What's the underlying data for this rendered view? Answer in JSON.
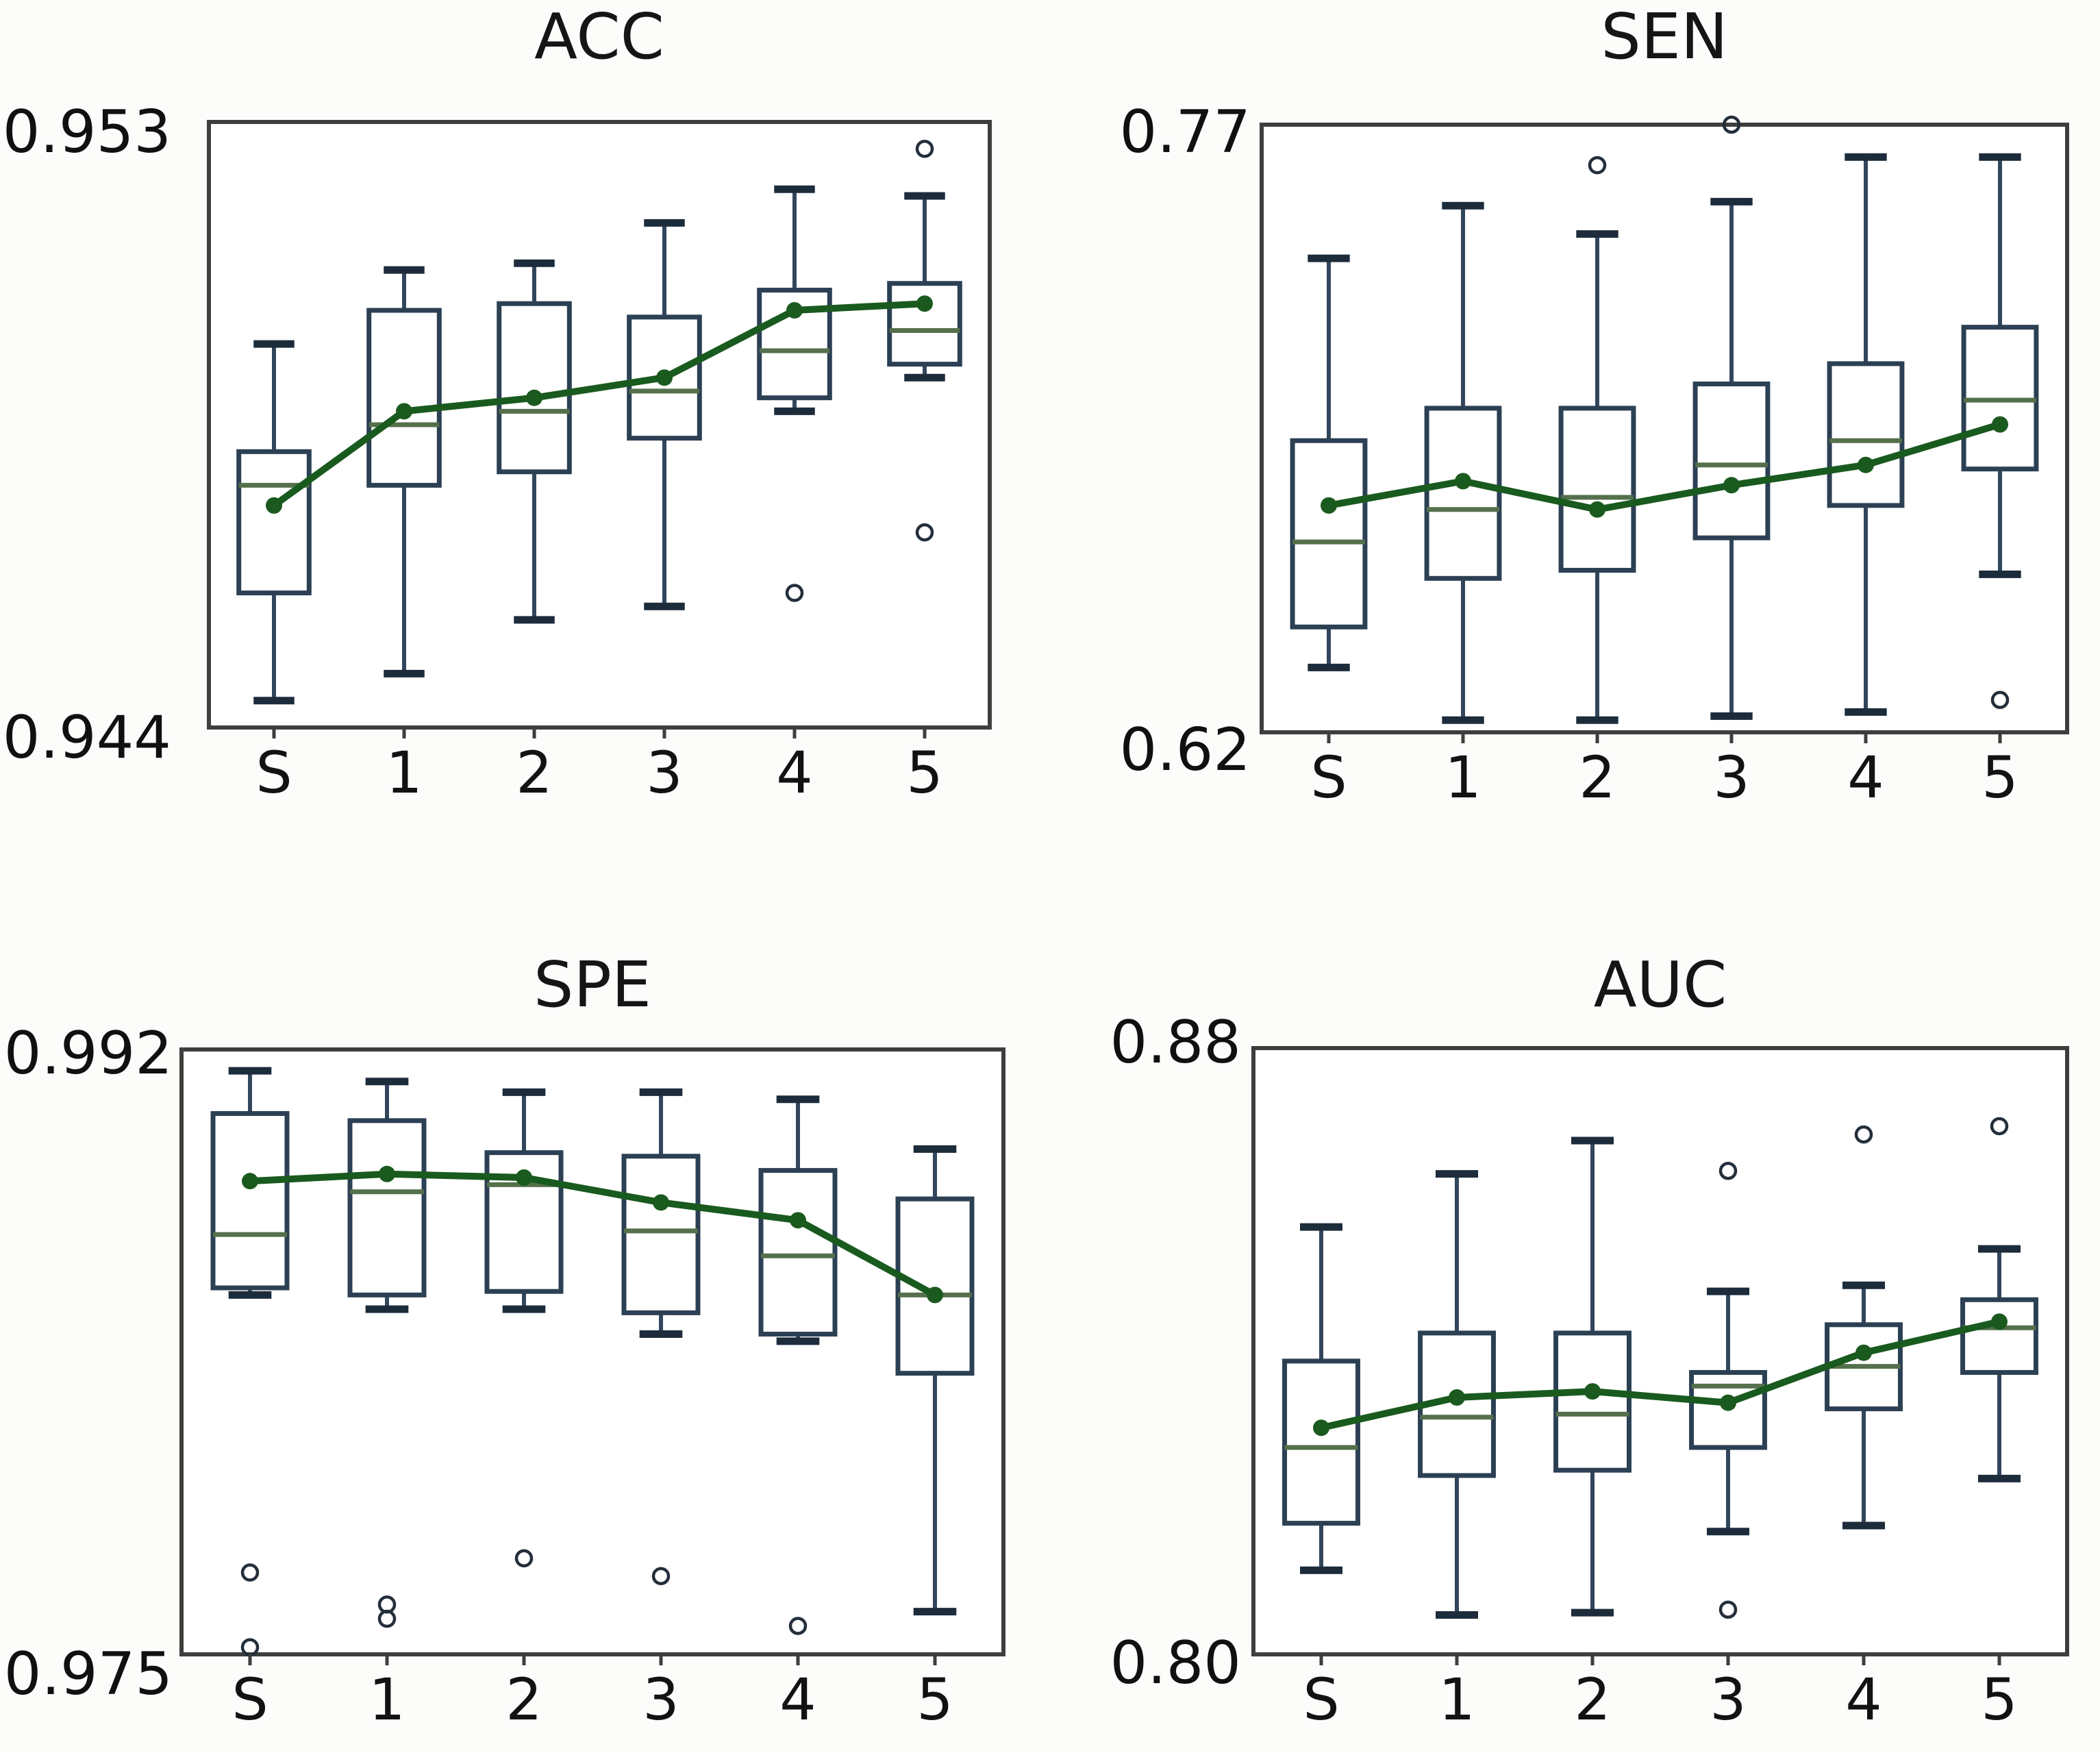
{
  "figure": {
    "background": "#fcfcfb",
    "text_color": "#121212"
  },
  "colors": {
    "box_edge": "#2c4054",
    "whisker": "#32465c",
    "whisker_cap": "#1d2c3b",
    "median": "#55704c",
    "mean_line": "#195a1e",
    "mean_marker": "#1b5a1f",
    "outlier_edge": "#232f3b",
    "frame": "#3e3e3c",
    "tick": "#3e3e3c"
  },
  "chart_data": [
    {
      "id": "acc",
      "type": "boxplot",
      "title": "ACC",
      "ymax_label": "0.953",
      "ymin_label": "0.944",
      "ylim": [
        0.944,
        0.953
      ],
      "grid": false,
      "categories": [
        "S",
        "1",
        "2",
        "3",
        "4",
        "5"
      ],
      "boxes": [
        {
          "whislo": 0.9444,
          "q1": 0.946,
          "med": 0.9476,
          "q3": 0.9481,
          "whishi": 0.9497,
          "mean": 0.9473,
          "fliers": []
        },
        {
          "whislo": 0.9448,
          "q1": 0.9476,
          "med": 0.9485,
          "q3": 0.9502,
          "whishi": 0.9508,
          "mean": 0.9487,
          "fliers": []
        },
        {
          "whislo": 0.9456,
          "q1": 0.9478,
          "med": 0.9487,
          "q3": 0.9503,
          "whishi": 0.9509,
          "mean": 0.9489,
          "fliers": []
        },
        {
          "whislo": 0.9458,
          "q1": 0.9483,
          "med": 0.949,
          "q3": 0.9501,
          "whishi": 0.9515,
          "mean": 0.9492,
          "fliers": []
        },
        {
          "whislo": 0.9487,
          "q1": 0.9489,
          "med": 0.9496,
          "q3": 0.9505,
          "whishi": 0.952,
          "mean": 0.9502,
          "fliers": [
            0.946
          ]
        },
        {
          "whislo": 0.9492,
          "q1": 0.9494,
          "med": 0.9499,
          "q3": 0.9506,
          "whishi": 0.9519,
          "mean": 0.9503,
          "fliers": [
            0.9526,
            0.9469
          ]
        }
      ]
    },
    {
      "id": "sen",
      "type": "boxplot",
      "title": "SEN",
      "ymax_label": "0.77",
      "ymin_label": "0.62",
      "ylim": [
        0.62,
        0.77
      ],
      "grid": false,
      "categories": [
        "S",
        "1",
        "2",
        "3",
        "4",
        "5"
      ],
      "boxes": [
        {
          "whislo": 0.636,
          "q1": 0.646,
          "med": 0.667,
          "q3": 0.692,
          "whishi": 0.737,
          "mean": 0.676,
          "fliers": []
        },
        {
          "whislo": 0.623,
          "q1": 0.658,
          "med": 0.675,
          "q3": 0.7,
          "whishi": 0.75,
          "mean": 0.682,
          "fliers": []
        },
        {
          "whislo": 0.623,
          "q1": 0.66,
          "med": 0.678,
          "q3": 0.7,
          "whishi": 0.743,
          "mean": 0.675,
          "fliers": [
            0.76
          ]
        },
        {
          "whislo": 0.624,
          "q1": 0.668,
          "med": 0.686,
          "q3": 0.706,
          "whishi": 0.751,
          "mean": 0.681,
          "fliers": [
            0.77
          ]
        },
        {
          "whislo": 0.625,
          "q1": 0.676,
          "med": 0.692,
          "q3": 0.711,
          "whishi": 0.762,
          "mean": 0.686,
          "fliers": []
        },
        {
          "whislo": 0.659,
          "q1": 0.685,
          "med": 0.702,
          "q3": 0.72,
          "whishi": 0.762,
          "mean": 0.696,
          "fliers": [
            0.628
          ]
        }
      ]
    },
    {
      "id": "spe",
      "type": "boxplot",
      "title": "SPE",
      "ymax_label": "0.992",
      "ymin_label": "0.975",
      "ylim": [
        0.975,
        0.992
      ],
      "grid": false,
      "categories": [
        "S",
        "1",
        "2",
        "3",
        "4",
        "5"
      ],
      "boxes": [
        {
          "whislo": 0.9851,
          "q1": 0.9853,
          "med": 0.9868,
          "q3": 0.9902,
          "whishi": 0.9914,
          "mean": 0.9883,
          "fliers": [
            0.9773,
            0.9752
          ]
        },
        {
          "whislo": 0.9847,
          "q1": 0.9851,
          "med": 0.988,
          "q3": 0.99,
          "whishi": 0.9911,
          "mean": 0.9885,
          "fliers": [
            0.9764,
            0.976
          ]
        },
        {
          "whislo": 0.9847,
          "q1": 0.9852,
          "med": 0.9882,
          "q3": 0.9891,
          "whishi": 0.9908,
          "mean": 0.9884,
          "fliers": [
            0.9777
          ]
        },
        {
          "whislo": 0.984,
          "q1": 0.9846,
          "med": 0.9869,
          "q3": 0.989,
          "whishi": 0.9908,
          "mean": 0.9877,
          "fliers": [
            0.9772
          ]
        },
        {
          "whislo": 0.9838,
          "q1": 0.984,
          "med": 0.9862,
          "q3": 0.9886,
          "whishi": 0.9906,
          "mean": 0.9872,
          "fliers": [
            0.9758
          ]
        },
        {
          "whislo": 0.9762,
          "q1": 0.9829,
          "med": 0.9851,
          "q3": 0.9878,
          "whishi": 0.9892,
          "mean": 0.9851,
          "fliers": []
        }
      ]
    },
    {
      "id": "auc",
      "type": "boxplot",
      "title": "AUC",
      "ymax_label": "0.88",
      "ymin_label": "0.80",
      "ylim": [
        0.8,
        0.88
      ],
      "grid": false,
      "categories": [
        "S",
        "1",
        "2",
        "3",
        "4",
        "5"
      ],
      "boxes": [
        {
          "whislo": 0.8111,
          "q1": 0.8173,
          "med": 0.8273,
          "q3": 0.8387,
          "whishi": 0.8564,
          "mean": 0.8299,
          "fliers": []
        },
        {
          "whislo": 0.8052,
          "q1": 0.8236,
          "med": 0.8313,
          "q3": 0.8424,
          "whishi": 0.8634,
          "mean": 0.8339,
          "fliers": []
        },
        {
          "whislo": 0.8055,
          "q1": 0.8243,
          "med": 0.8317,
          "q3": 0.8424,
          "whishi": 0.8678,
          "mean": 0.8347,
          "fliers": []
        },
        {
          "whislo": 0.8162,
          "q1": 0.8273,
          "med": 0.8354,
          "q3": 0.8372,
          "whishi": 0.8479,
          "mean": 0.8332,
          "fliers": [
            0.8638,
            0.8059
          ]
        },
        {
          "whislo": 0.817,
          "q1": 0.8324,
          "med": 0.838,
          "q3": 0.8435,
          "whishi": 0.8487,
          "mean": 0.8398,
          "fliers": [
            0.8686
          ]
        },
        {
          "whislo": 0.8232,
          "q1": 0.8372,
          "med": 0.8431,
          "q3": 0.8468,
          "whishi": 0.8535,
          "mean": 0.8439,
          "fliers": [
            0.8697
          ]
        }
      ]
    }
  ]
}
